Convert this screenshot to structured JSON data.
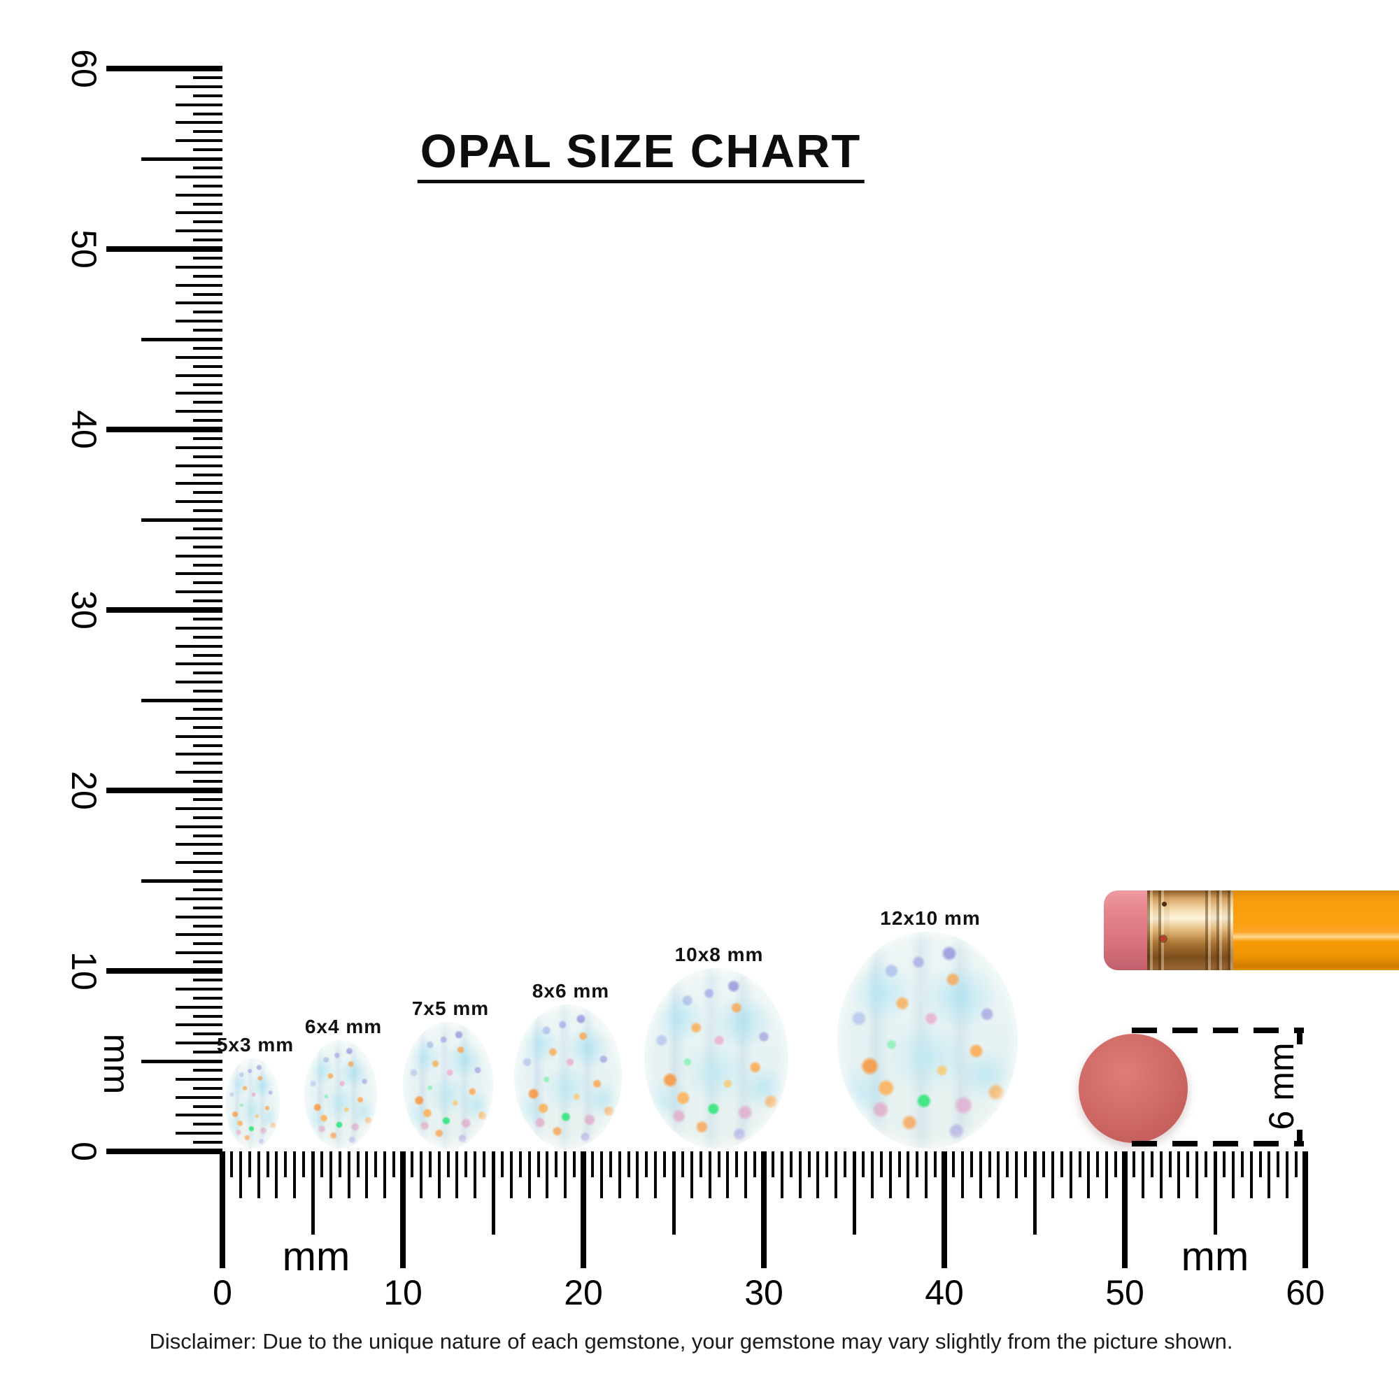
{
  "title": "OPAL SIZE CHART",
  "vertical_ruler": {
    "unit": "mm",
    "max_mm": 60,
    "minor_step_mm": 0.5,
    "labels": [
      "0",
      "10",
      "20",
      "30",
      "40",
      "50",
      "60"
    ]
  },
  "horizontal_ruler": {
    "unit_left": "mm",
    "unit_right": "mm",
    "max_mm": 60,
    "minor_step_mm": 0.5,
    "labels": [
      "0",
      "10",
      "20",
      "30",
      "40",
      "50",
      "60"
    ]
  },
  "opals": [
    {
      "label": "5x3 mm",
      "width_mm": 3,
      "length_mm": 5
    },
    {
      "label": "6x4 mm",
      "width_mm": 4,
      "length_mm": 6
    },
    {
      "label": "7x5 mm",
      "width_mm": 5,
      "length_mm": 7
    },
    {
      "label": "8x6 mm",
      "width_mm": 6,
      "length_mm": 8
    },
    {
      "label": "10x8 mm",
      "width_mm": 8,
      "length_mm": 10
    },
    {
      "label": "12x10 mm",
      "width_mm": 10,
      "length_mm": 12
    }
  ],
  "reference_dot": {
    "label": "6 mm",
    "diameter_mm": 6,
    "color": "#d16c68"
  },
  "pencil": {
    "eraser_color": "#e0828b",
    "ferrule_color": "#e8bd83",
    "body_color": "#f89c0e"
  },
  "colors": {
    "ink": "#000000",
    "background": "#ffffff",
    "opal_base": "#e8f2f2"
  },
  "disclaimer": "Disclaimer: Due to the unique nature of each gemstone, your gemstone may vary slightly from the picture shown."
}
